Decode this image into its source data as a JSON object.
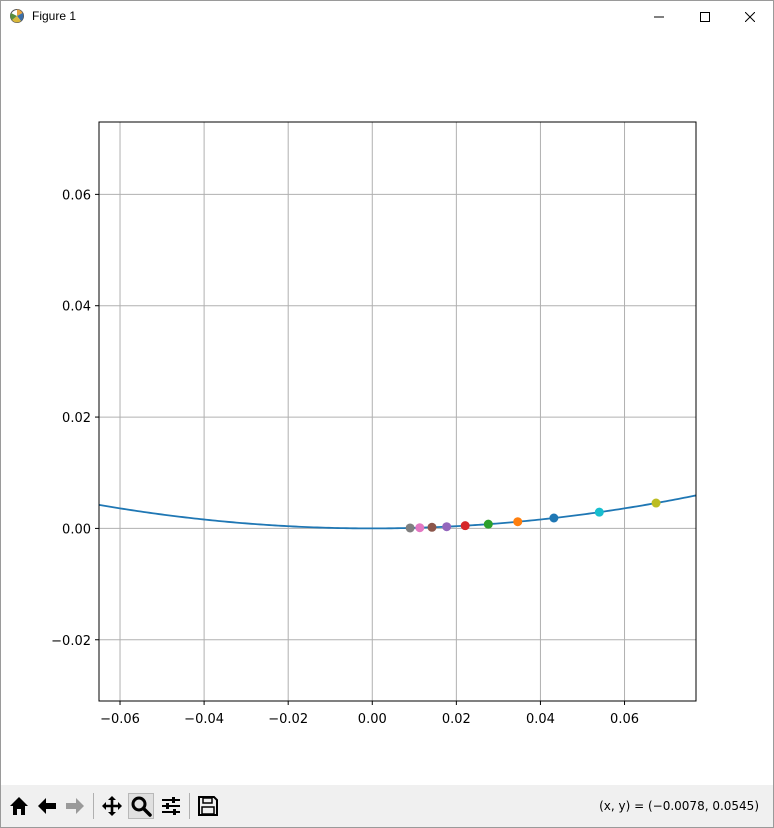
{
  "window": {
    "title": "Figure 1",
    "min_icon": "minimize-icon",
    "max_icon": "maximize-icon",
    "close_icon": "close-icon"
  },
  "toolbar": {
    "tools": [
      {
        "name": "home-icon",
        "label": "Home"
      },
      {
        "name": "back-icon",
        "label": "Back"
      },
      {
        "name": "forward-icon",
        "label": "Forward"
      },
      {
        "name": "pan-icon",
        "label": "Pan"
      },
      {
        "name": "zoom-icon",
        "label": "Zoom",
        "active": true
      },
      {
        "name": "configure-subplots-icon",
        "label": "Configure subplots"
      },
      {
        "name": "save-icon",
        "label": "Save"
      }
    ],
    "coords": "(x, y) = (−0.0078, 0.0545)"
  },
  "chart_data": {
    "type": "scatter",
    "title": "",
    "xlabel": "",
    "ylabel": "",
    "xlim": [
      -0.065,
      0.077
    ],
    "ylim": [
      -0.031,
      0.073
    ],
    "grid": true,
    "xticks": [
      -0.06,
      -0.04,
      -0.02,
      0.0,
      0.02,
      0.04,
      0.06
    ],
    "yticks": [
      -0.02,
      0.0,
      0.02,
      0.04,
      0.06
    ],
    "xtick_labels": [
      "−0.06",
      "−0.04",
      "−0.02",
      "0.00",
      "0.02",
      "0.04",
      "0.06"
    ],
    "ytick_labels": [
      "−0.02",
      "0.00",
      "0.02",
      "0.04",
      "0.06"
    ],
    "curve": {
      "type": "line",
      "color": "#1f77b4",
      "function": "y = x^2",
      "x_range": [
        -0.065,
        0.077
      ]
    },
    "points": [
      {
        "x": 0.0675,
        "y": 0.00456,
        "color": "#bcbd22"
      },
      {
        "x": 0.054,
        "y": 0.00292,
        "color": "#17becf"
      },
      {
        "x": 0.0432,
        "y": 0.00187,
        "color": "#1f77b4"
      },
      {
        "x": 0.0346,
        "y": 0.0012,
        "color": "#ff7f0e"
      },
      {
        "x": 0.0276,
        "y": 0.00076,
        "color": "#2ca02c"
      },
      {
        "x": 0.0221,
        "y": 0.00049,
        "color": "#d62728"
      },
      {
        "x": 0.0177,
        "y": 0.00031,
        "color": "#9467bd"
      },
      {
        "x": 0.0142,
        "y": 0.0002,
        "color": "#8c564b"
      },
      {
        "x": 0.0113,
        "y": 0.00013,
        "color": "#e377c2"
      },
      {
        "x": 0.009,
        "y": 8e-05,
        "color": "#7f7f7f"
      }
    ]
  }
}
